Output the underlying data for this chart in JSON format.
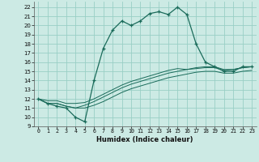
{
  "xlabel": "Humidex (Indice chaleur)",
  "bg_color": "#cceae4",
  "grid_color": "#99cfc5",
  "line_color": "#1a6b5a",
  "xlim": [
    -0.5,
    23.5
  ],
  "ylim": [
    9,
    22.6
  ],
  "xticks": [
    0,
    1,
    2,
    3,
    4,
    5,
    6,
    7,
    8,
    9,
    10,
    11,
    12,
    13,
    14,
    15,
    16,
    17,
    18,
    19,
    20,
    21,
    22,
    23
  ],
  "xtick_labels": [
    "0",
    "1",
    "2",
    "3",
    "4",
    "5",
    "6",
    "7",
    "8",
    "9",
    "10",
    "11",
    "12",
    "13",
    "14",
    "15",
    "16",
    "17",
    "18",
    "19",
    "20",
    "21",
    "22",
    "23"
  ],
  "yticks": [
    9,
    10,
    11,
    12,
    13,
    14,
    15,
    16,
    17,
    18,
    19,
    20,
    21,
    22
  ],
  "main_y": [
    12,
    11.5,
    11.2,
    11.0,
    10.0,
    9.5,
    14.0,
    17.5,
    19.5,
    20.5,
    20.0,
    20.5,
    21.3,
    21.5,
    21.2,
    22.0,
    21.2,
    18.0,
    16.0,
    15.5,
    15.0,
    15.0,
    15.5,
    15.5
  ],
  "line2_y": [
    12.0,
    11.5,
    11.5,
    11.2,
    11.0,
    11.3,
    11.7,
    12.2,
    12.7,
    13.2,
    13.6,
    13.9,
    14.2,
    14.5,
    14.8,
    15.0,
    15.2,
    15.4,
    15.5,
    15.5,
    15.2,
    15.2,
    15.4,
    15.5
  ],
  "line3_y": [
    12.0,
    11.5,
    11.5,
    11.2,
    11.0,
    11.0,
    11.3,
    11.7,
    12.2,
    12.7,
    13.1,
    13.4,
    13.7,
    14.0,
    14.3,
    14.5,
    14.7,
    14.9,
    15.0,
    15.0,
    14.8,
    14.8,
    15.0,
    15.1
  ],
  "line4_y": [
    12.0,
    11.8,
    11.8,
    11.5,
    11.5,
    11.6,
    12.0,
    12.5,
    13.0,
    13.5,
    13.9,
    14.2,
    14.5,
    14.8,
    15.1,
    15.3,
    15.2,
    15.3,
    15.4,
    15.4,
    15.1,
    15.2,
    15.4,
    15.5
  ]
}
